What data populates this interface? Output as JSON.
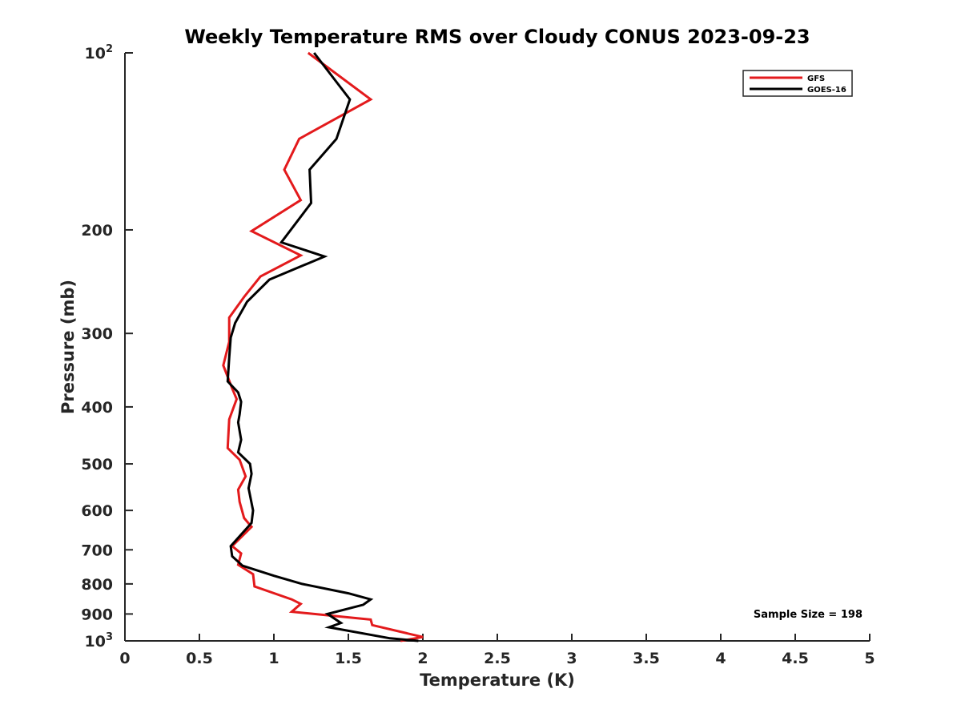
{
  "chart_data": {
    "type": "line",
    "title": "Weekly Temperature RMS over Cloudy CONUS 2023-09-23",
    "xlabel": "Temperature (K)",
    "ylabel": "Pressure (mb)",
    "xlim": [
      0,
      5
    ],
    "ylim": [
      100,
      1000
    ],
    "yscale": "log",
    "y_reversed": true,
    "grid": false,
    "legend_position": "top-right",
    "x_ticks": [
      "0",
      "0.5",
      "1",
      "1.5",
      "2",
      "2.5",
      "3",
      "3.5",
      "4",
      "4.5",
      "5"
    ],
    "x_tick_values": [
      0,
      0.5,
      1,
      1.5,
      2,
      2.5,
      3,
      3.5,
      4,
      4.5,
      5
    ],
    "y_ticks": [
      {
        "value": 100,
        "base": "10",
        "exp": "2"
      },
      {
        "value": 200,
        "label": "200"
      },
      {
        "value": 300,
        "label": "300"
      },
      {
        "value": 400,
        "label": "400"
      },
      {
        "value": 500,
        "label": "500"
      },
      {
        "value": 600,
        "label": "600"
      },
      {
        "value": 700,
        "label": "700"
      },
      {
        "value": 800,
        "label": "800"
      },
      {
        "value": 900,
        "label": "900"
      },
      {
        "value": 1000,
        "base": "10",
        "exp": "3"
      }
    ],
    "annotation": "Sample Size = 198",
    "series": [
      {
        "name": "GFS",
        "color": "#e31a1c",
        "points": [
          [
            1.23,
            100
          ],
          [
            1.65,
            120
          ],
          [
            1.17,
            140
          ],
          [
            1.07,
            158
          ],
          [
            1.18,
            178
          ],
          [
            0.85,
            201
          ],
          [
            1.18,
            221
          ],
          [
            0.91,
            240
          ],
          [
            0.8,
            260
          ],
          [
            0.7,
            282
          ],
          [
            0.7,
            310
          ],
          [
            0.66,
            340
          ],
          [
            0.72,
            372
          ],
          [
            0.75,
            388
          ],
          [
            0.7,
            420
          ],
          [
            0.69,
            470
          ],
          [
            0.77,
            492
          ],
          [
            0.81,
            525
          ],
          [
            0.76,
            553
          ],
          [
            0.77,
            580
          ],
          [
            0.8,
            618
          ],
          [
            0.85,
            640
          ],
          [
            0.72,
            690
          ],
          [
            0.78,
            710
          ],
          [
            0.76,
            742
          ],
          [
            0.86,
            770
          ],
          [
            0.87,
            808
          ],
          [
            1.12,
            850
          ],
          [
            1.18,
            865
          ],
          [
            1.12,
            892
          ],
          [
            1.65,
            920
          ],
          [
            1.66,
            940
          ],
          [
            2.0,
            985
          ],
          [
            1.85,
            1000
          ]
        ]
      },
      {
        "name": "GOES-16",
        "color": "#000000",
        "points": [
          [
            1.27,
            100
          ],
          [
            1.51,
            120
          ],
          [
            1.42,
            140
          ],
          [
            1.24,
            158
          ],
          [
            1.25,
            180
          ],
          [
            1.05,
            210
          ],
          [
            1.34,
            222
          ],
          [
            0.97,
            243
          ],
          [
            0.82,
            265
          ],
          [
            0.74,
            288
          ],
          [
            0.71,
            305
          ],
          [
            0.7,
            330
          ],
          [
            0.69,
            362
          ],
          [
            0.76,
            378
          ],
          [
            0.78,
            392
          ],
          [
            0.77,
            412
          ],
          [
            0.76,
            425
          ],
          [
            0.78,
            455
          ],
          [
            0.76,
            478
          ],
          [
            0.84,
            500
          ],
          [
            0.85,
            520
          ],
          [
            0.83,
            550
          ],
          [
            0.86,
            600
          ],
          [
            0.85,
            630
          ],
          [
            0.71,
            690
          ],
          [
            0.72,
            718
          ],
          [
            0.79,
            745
          ],
          [
            1.0,
            775
          ],
          [
            1.19,
            800
          ],
          [
            1.5,
            830
          ],
          [
            1.65,
            850
          ],
          [
            1.6,
            868
          ],
          [
            1.36,
            900
          ],
          [
            1.45,
            932
          ],
          [
            1.37,
            948
          ],
          [
            1.78,
            990
          ],
          [
            1.97,
            1000
          ]
        ]
      }
    ]
  }
}
